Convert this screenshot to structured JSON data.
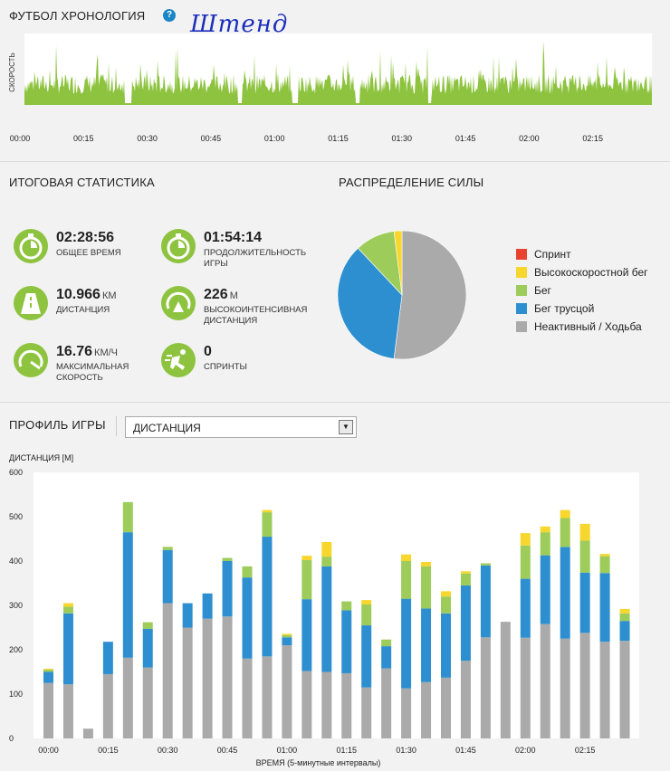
{
  "timeline": {
    "title": "ФУТБОЛ ХРОНОЛОГИЯ",
    "help": "?",
    "annotation": "Штенд",
    "ylabel": "СКОРОСТЬ",
    "time_ticks": [
      "00:00",
      "00:15",
      "00:30",
      "00:45",
      "01:00",
      "01:15",
      "01:30",
      "01:45",
      "02:00",
      "02:15"
    ],
    "color": "#8dc33e"
  },
  "summary": {
    "title": "ИТОГОВАЯ СТАТИСТИКА",
    "stats": [
      {
        "value": "02:28:56",
        "unit": "",
        "label": "ОБЩЕЕ ВРЕМЯ",
        "icon": "stopwatch-icon"
      },
      {
        "value": "01:54:14",
        "unit": "",
        "label": "ПРОДОЛЖИТЕЛЬНОСТЬ ИГРЫ",
        "icon": "stopwatch-icon"
      },
      {
        "value": "10.966",
        "unit": "КМ",
        "label": "ДИСТАНЦИЯ",
        "icon": "road-icon"
      },
      {
        "value": "226",
        "unit": "М",
        "label": "ВЫСОКОИНТЕНСИВНАЯ ДИСТАНЦИЯ",
        "icon": "intensity-icon"
      },
      {
        "value": "16.76",
        "unit": "КМ/Ч",
        "label": "МАКСИМАЛЬНАЯ СКОРОСТЬ",
        "icon": "speedometer-icon"
      },
      {
        "value": "0",
        "unit": "",
        "label": "СПРИНТЫ",
        "icon": "sprinter-icon"
      }
    ]
  },
  "power": {
    "title": "РАСПРЕДЕЛЕНИЕ СИЛЫ",
    "legend": [
      {
        "name": "Спринт",
        "color": "#e8432e"
      },
      {
        "name": "Высокоскоростной бег",
        "color": "#f7d62e"
      },
      {
        "name": "Бег",
        "color": "#9dcc5a"
      },
      {
        "name": "Бег трусцой",
        "color": "#2e8fd0"
      },
      {
        "name": "Неактивный / Ходьба",
        "color": "#aaaaaa"
      }
    ]
  },
  "profile": {
    "title": "ПРОФИЛЬ ИГРЫ",
    "select_value": "ДИСТАНЦИЯ"
  },
  "chart_data": [
    {
      "type": "pie",
      "title": "РАСПРЕДЕЛЕНИЕ СИЛЫ",
      "labels": [
        "Спринт",
        "Высокоскоростной бег",
        "Бег",
        "Бег трусцой",
        "Неактивный / Ходьба"
      ],
      "values": [
        0,
        2,
        10,
        36,
        52
      ],
      "colors": [
        "#e8432e",
        "#f7d62e",
        "#9dcc5a",
        "#2e8fd0",
        "#aaaaaa"
      ]
    },
    {
      "type": "bar",
      "stacked": true,
      "ylabel": "ДИСТАНЦИЯ [М]",
      "xlabel": "ВРЕМЯ (5-минутные интервалы)",
      "ylim": [
        0,
        600
      ],
      "yticks": [
        0,
        100,
        200,
        300,
        400,
        500,
        600
      ],
      "xtick_labels": [
        "00:00",
        "00:15",
        "00:30",
        "00:45",
        "01:00",
        "01:15",
        "01:30",
        "01:45",
        "02:00",
        "02:15"
      ],
      "grid": false,
      "series": [
        {
          "name": "Неактивный / Ходьба",
          "color": "#aaaaaa",
          "values": [
            125,
            122,
            22,
            145,
            182,
            160,
            305,
            250,
            270,
            275,
            180,
            185,
            210,
            152,
            150,
            147,
            115,
            158,
            113,
            127,
            137,
            175,
            228,
            263,
            227,
            258,
            225,
            238,
            218,
            220
          ]
        },
        {
          "name": "Бег трусцой",
          "color": "#2e8fd0",
          "values": [
            25,
            160,
            0,
            73,
            283,
            87,
            120,
            55,
            57,
            125,
            183,
            270,
            18,
            162,
            238,
            142,
            140,
            50,
            202,
            166,
            145,
            170,
            162,
            0,
            133,
            155,
            207,
            136,
            155,
            45
          ]
        },
        {
          "name": "Бег",
          "color": "#9dcc5a",
          "values": [
            5,
            15,
            0,
            0,
            68,
            15,
            7,
            0,
            0,
            7,
            25,
            55,
            5,
            88,
            22,
            20,
            47,
            15,
            85,
            95,
            38,
            27,
            5,
            0,
            75,
            52,
            65,
            72,
            38,
            17
          ]
        },
        {
          "name": "Высокоскоростной бег",
          "color": "#f7d62e",
          "values": [
            2,
            8,
            0,
            0,
            0,
            0,
            0,
            0,
            0,
            0,
            0,
            5,
            3,
            10,
            33,
            0,
            10,
            0,
            15,
            10,
            12,
            5,
            0,
            0,
            28,
            13,
            18,
            38,
            5,
            10
          ]
        },
        {
          "name": "Спринт",
          "color": "#e8432e",
          "values": [
            0,
            0,
            0,
            0,
            0,
            0,
            0,
            0,
            0,
            0,
            0,
            0,
            0,
            0,
            0,
            0,
            0,
            0,
            0,
            0,
            0,
            0,
            0,
            0,
            0,
            0,
            0,
            0,
            0,
            0
          ]
        }
      ]
    }
  ]
}
